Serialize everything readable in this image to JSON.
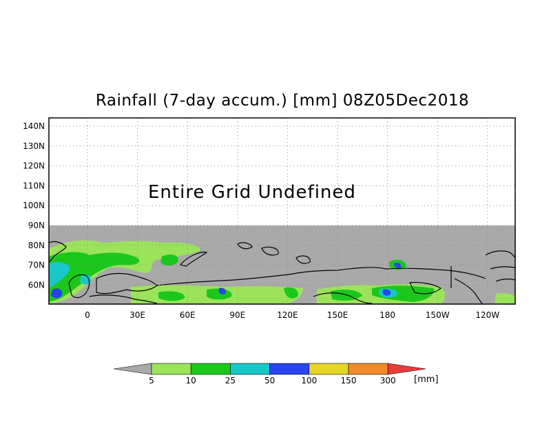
{
  "title": "Rainfall (7-day accum.) [mm] 08Z05Dec2018",
  "undefined_message": "Entire Grid Undefined",
  "map": {
    "lat_ticks": [
      "140N",
      "130N",
      "120N",
      "110N",
      "100N",
      "90N",
      "80N",
      "70N",
      "60N"
    ],
    "lon_ticks": [
      "0",
      "30E",
      "60E",
      "90E",
      "120E",
      "150E",
      "180",
      "150W",
      "120W"
    ],
    "undefined_region_color": "#a9a9a9",
    "grid": true
  },
  "legend": {
    "labels": [
      "5",
      "10",
      "25",
      "50",
      "100",
      "150",
      "300"
    ],
    "unit": "[mm]",
    "under_color": "#a9a9a9",
    "colors": [
      "#9be35a",
      "#1cc71c",
      "#18c8c8",
      "#2a44ee",
      "#e6d62a",
      "#f08a2a",
      "#ee3a3a"
    ]
  }
}
